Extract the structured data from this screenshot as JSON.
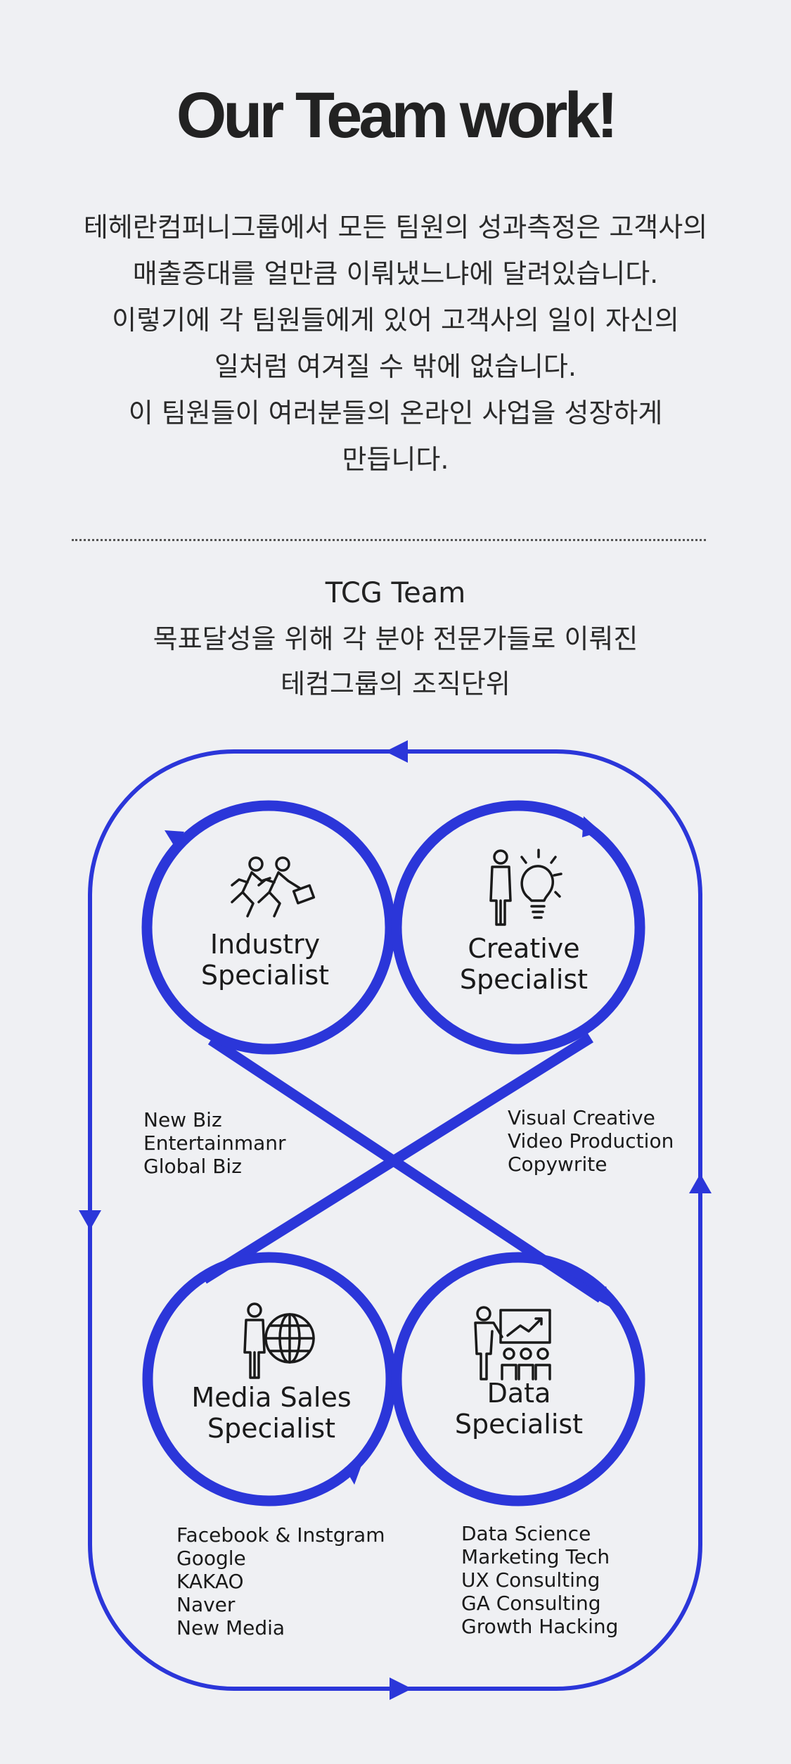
{
  "heading": {
    "title": "Our Team work!",
    "intro_lines": [
      "테헤란컴퍼니그룹에서 모든 팀원의 성과측정은 고객사의",
      "매출증대를 얼만큼 이뤄냈느냐에 달려있습니다.",
      "이렇기에 각 팀원들에게 있어 고객사의 일이 자신의",
      "일처럼 여겨질 수 밖에 없습니다.",
      "이 팀원들이 여러분들의 온라인 사업을 성장하게",
      "만듭니다."
    ]
  },
  "team": {
    "title": "TCG  Team",
    "subtitle_lines": [
      "목표달성을 위해 각 분야 전문가들로 이뤄진",
      "테컴그룹의 조직단위"
    ]
  },
  "diagram": {
    "accent_color": "#2b36d9",
    "nodes": [
      {
        "id": "industry",
        "icon": "running-businessmen-icon",
        "label_lines": [
          "Industry",
          "Specialist"
        ],
        "items": [
          "New Biz",
          "Entertainmanr",
          "Global Biz"
        ]
      },
      {
        "id": "creative",
        "icon": "person-lightbulb-icon",
        "label_lines": [
          "Creative",
          "Specialist"
        ],
        "items": [
          "Visual Creative",
          "Video Production",
          "Copywrite"
        ]
      },
      {
        "id": "media",
        "icon": "person-globe-icon",
        "label_lines": [
          "Media Sales",
          "Specialist"
        ],
        "items": [
          "Facebook & Instgram",
          "Google",
          "KAKAO",
          "Naver",
          "New Media"
        ]
      },
      {
        "id": "data",
        "icon": "presentation-chart-icon",
        "label_lines": [
          "Data",
          "Specialist"
        ],
        "items": [
          "Data Science",
          "Marketing Tech",
          "UX Consulting",
          "GA Consulting",
          "Growth Hacking"
        ]
      }
    ]
  }
}
